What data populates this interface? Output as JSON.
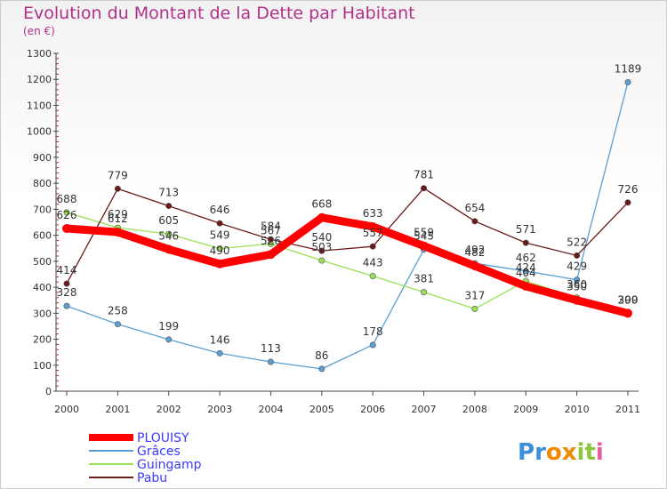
{
  "title": "Evolution du Montant de la Dette par Habitant",
  "subtitle": "(en €)",
  "logo_text": "Proxiti",
  "chart_data": {
    "type": "line",
    "title": "Evolution du Montant de la Dette par Habitant",
    "subtitle": "(en €)",
    "x": [
      "2000",
      "2001",
      "2002",
      "2003",
      "2004",
      "2005",
      "2006",
      "2007",
      "2008",
      "2009",
      "2010",
      "2011"
    ],
    "ylim": [
      0,
      1300
    ],
    "yticks": [
      0,
      100,
      200,
      300,
      400,
      500,
      600,
      700,
      800,
      900,
      1000,
      1100,
      1200,
      1300
    ],
    "grid": false,
    "legend_position": "bottom-left",
    "series": [
      {
        "name": "PLOUISY",
        "color": "#ff0000",
        "values": [
          626,
          612,
          546,
          490,
          526,
          668,
          633,
          559,
          482,
          404,
          350,
          300
        ]
      },
      {
        "name": "Grâces",
        "color": "#5a9fd4",
        "values": [
          328,
          258,
          199,
          146,
          113,
          86,
          178,
          545,
          492,
          462,
          429,
          1189
        ]
      },
      {
        "name": "Guingamp",
        "color": "#99e255",
        "values": [
          688,
          629,
          605,
          549,
          567,
          503,
          443,
          381,
          317,
          424,
          360,
          299
        ]
      },
      {
        "name": "Pabu",
        "color": "#6b1a1a",
        "values": [
          414,
          779,
          713,
          646,
          584,
          540,
          557,
          781,
          654,
          571,
          522,
          726
        ]
      }
    ]
  }
}
